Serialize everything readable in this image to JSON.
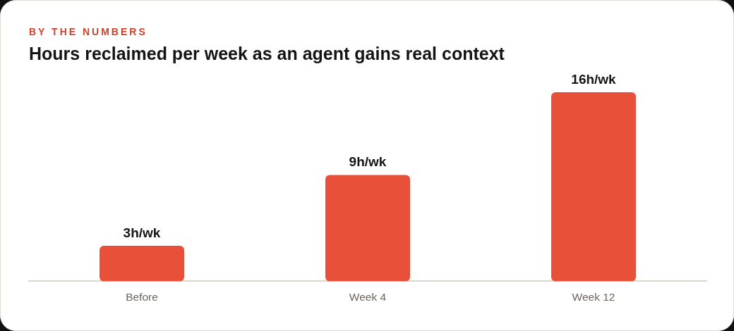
{
  "chart_data": {
    "type": "bar",
    "subtitle": "BY THE NUMBERS",
    "title": "Hours reclaimed per week as an agent gains real context",
    "categories": [
      "Before",
      "Week 4",
      "Week 12"
    ],
    "values": [
      3,
      9,
      16
    ],
    "color": "#e8503a",
    "value_labels": [
      "3h/wk",
      "9h/wk",
      "16h/wk"
    ]
  }
}
